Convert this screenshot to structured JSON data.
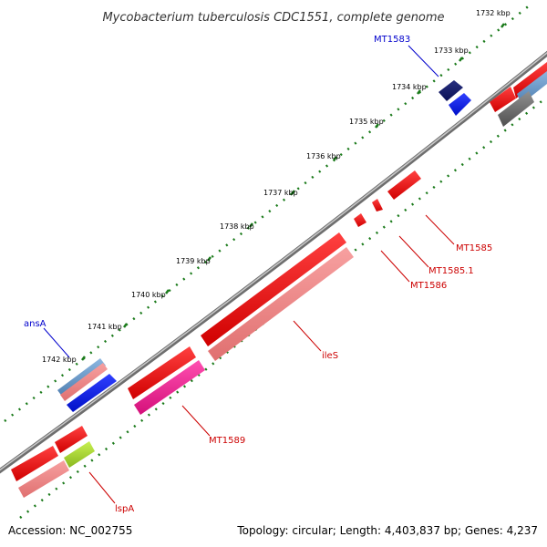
{
  "title": "Mycobacterium tuberculosis CDC1551, complete genome",
  "footer": {
    "accession": "Accession: NC_002755",
    "summary": "Topology: circular; Length: 4,403,837 bp; Genes: 4,237"
  },
  "colors": {
    "backbone": "#7f7f7f",
    "tick": "#1a7a1a",
    "forward_label": "#0000cc",
    "reverse_label": "#cc0000"
  },
  "chart_data": {
    "type": "genome-map",
    "scale_unit": "kbp",
    "visible_range_kbp": [
      1732,
      1742
    ],
    "tick_labels": [
      "1732 kbp",
      "1733 kbp",
      "1734 kbp",
      "1735 kbp",
      "1736 kbp",
      "1737 kbp",
      "1738 kbp",
      "1739 kbp",
      "1740 kbp",
      "1741 kbp",
      "1742 kbp"
    ],
    "gene_labels": [
      {
        "name": "MT1583",
        "strand": "forward"
      },
      {
        "name": "ansA",
        "strand": "forward"
      },
      {
        "name": "MT1585",
        "strand": "reverse"
      },
      {
        "name": "MT1585.1",
        "strand": "reverse"
      },
      {
        "name": "MT1586",
        "strand": "reverse"
      },
      {
        "name": "ileS",
        "strand": "reverse"
      },
      {
        "name": "MT1589",
        "strand": "reverse"
      },
      {
        "name": "lspA",
        "strand": "reverse"
      }
    ]
  }
}
